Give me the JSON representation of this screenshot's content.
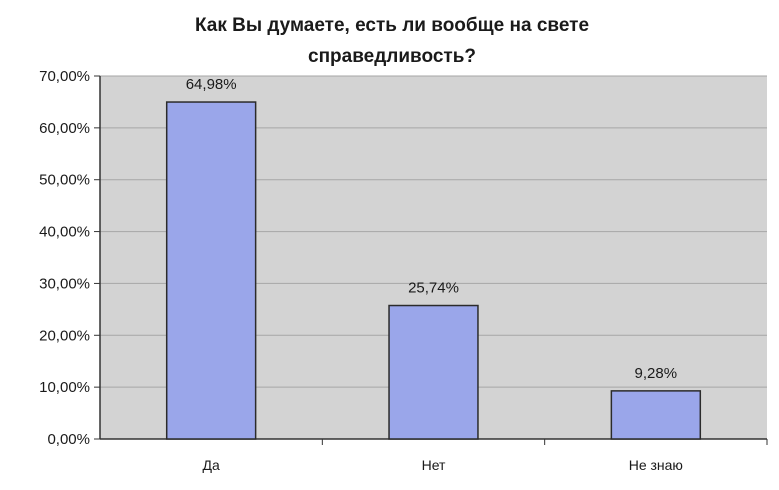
{
  "chart_data": {
    "type": "bar",
    "title_lines": [
      "Как Вы думаете, есть ли вообще на свете",
      "справедливость?"
    ],
    "xlabel": "",
    "ylabel": "",
    "categories": [
      "Да",
      "Нет",
      "Не знаю"
    ],
    "values": [
      64.98,
      25.74,
      9.28
    ],
    "data_labels": [
      "64,98%",
      "25,74%",
      "9,28%"
    ],
    "ylim": [
      0,
      70
    ],
    "y_ticks": [
      0,
      10,
      20,
      30,
      40,
      50,
      60,
      70
    ],
    "y_tick_labels": [
      "0,00%",
      "10,00%",
      "20,00%",
      "30,00%",
      "40,00%",
      "50,00%",
      "60,00%",
      "70,00%"
    ],
    "grid": true,
    "legend": "none",
    "colors": {
      "bar_fill": "#9aa6ea",
      "bar_stroke": "#2b2b2b",
      "plot_background": "#d3d3d3",
      "axis": "#333333",
      "gridline": "#a6a6a6"
    }
  }
}
